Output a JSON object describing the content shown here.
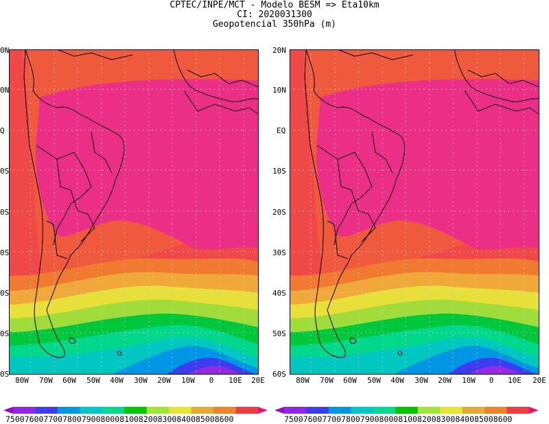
{
  "header": {
    "line1": "CPTEC/INPE/MCT -  Modelo BESM => Eta10km",
    "line2": "CI: 2020031300",
    "line3": "Geopotencial 350hPa (m)"
  },
  "panels": [
    {
      "id": "left",
      "lat_labels_visible": [
        "0N",
        "0N",
        "Q",
        "0S",
        "0S",
        "0S",
        "0S",
        "0S",
        "0S"
      ],
      "lon_labels": [
        "80W",
        "70W",
        "60W",
        "50W",
        "40W",
        "30W",
        "20W",
        "10W",
        "0",
        "10E",
        "20E"
      ]
    },
    {
      "id": "right",
      "lat_labels_visible": [
        "20N",
        "10N",
        "EQ",
        "10S",
        "20S",
        "30S",
        "40S",
        "50S",
        "60S"
      ],
      "lon_labels": [
        "80W",
        "70W",
        "60W",
        "50W",
        "40W",
        "30W",
        "20W",
        "10W",
        "0",
        "10E",
        "20E"
      ]
    }
  ],
  "colorbar": {
    "levels": [
      "7500",
      "7600",
      "7700",
      "7800",
      "7900",
      "8000",
      "8100",
      "8200",
      "8300",
      "8400",
      "8500",
      "8600"
    ],
    "colors": [
      "#a000c8",
      "#8c28e6",
      "#3c3cf0",
      "#0096e6",
      "#00c8c8",
      "#00dc8c",
      "#00c800",
      "#a0e632",
      "#e6e632",
      "#e6aa32",
      "#f08228",
      "#f03c3c",
      "#f03296"
    ],
    "end_colors": {
      "low": "#a000c8",
      "high": "#e6147a"
    }
  }
}
